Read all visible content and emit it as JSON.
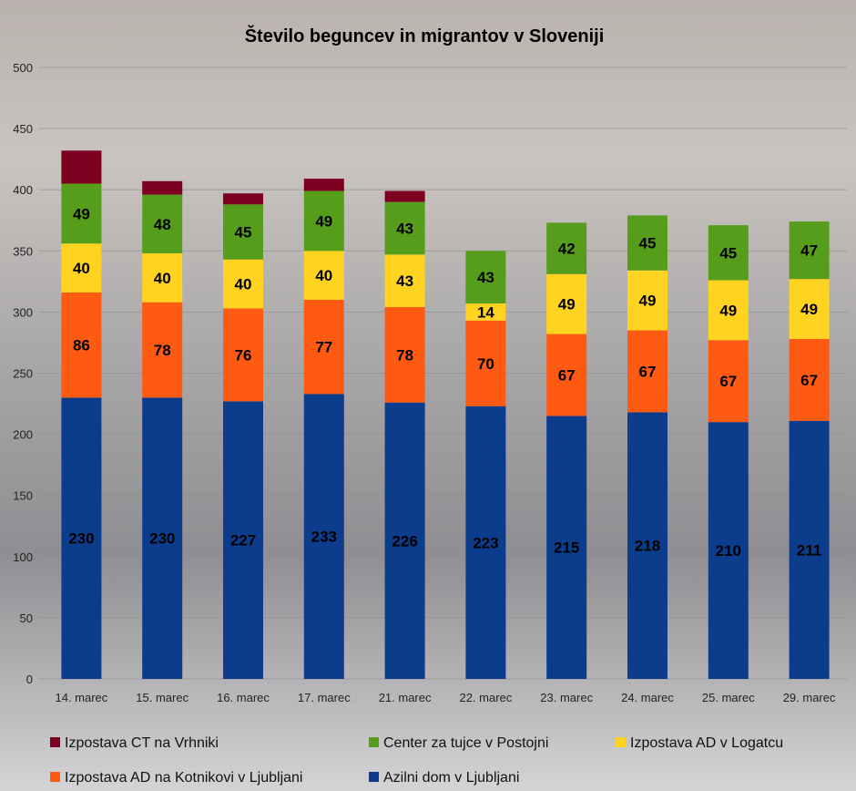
{
  "chart_data": {
    "type": "bar",
    "stacked": true,
    "title": "Število beguncev in migrantov v Sloveniji",
    "xlabel": "",
    "ylabel": "",
    "ylim": [
      0,
      500
    ],
    "yticks": [
      0,
      50,
      100,
      150,
      200,
      250,
      300,
      350,
      400,
      450,
      500
    ],
    "grid": true,
    "legend_position": "bottom",
    "categories": [
      "14. marec",
      "15. marec",
      "16. marec",
      "17. marec",
      "21. marec",
      "22. marec",
      "23. marec",
      "24. marec",
      "25. marec",
      "29. marec"
    ],
    "series": [
      {
        "name": "Azilni dom v Ljubljani",
        "color": "#0b3d8c",
        "values": [
          230,
          230,
          227,
          233,
          226,
          223,
          215,
          218,
          210,
          211
        ],
        "labels": true
      },
      {
        "name": "Izpostava AD na Kotnikovi v Ljubljani",
        "color": "#ff5a12",
        "values": [
          86,
          78,
          76,
          77,
          78,
          70,
          67,
          67,
          67,
          67
        ],
        "labels": true
      },
      {
        "name": "Izpostava AD v Logatcu",
        "color": "#ffd320",
        "values": [
          40,
          40,
          40,
          40,
          43,
          14,
          49,
          49,
          49,
          49
        ],
        "labels": true
      },
      {
        "name": "Center za tujce v Postojni",
        "color": "#579d1c",
        "values": [
          49,
          48,
          45,
          49,
          43,
          43,
          42,
          45,
          45,
          47
        ],
        "labels": true
      },
      {
        "name": "Izpostava CT na Vrhniki",
        "color": "#7e0021",
        "values": [
          27,
          11,
          9,
          10,
          9,
          0,
          0,
          0,
          0,
          0
        ],
        "labels": false
      }
    ],
    "legend_order": [
      4,
      3,
      2,
      1,
      0
    ]
  }
}
